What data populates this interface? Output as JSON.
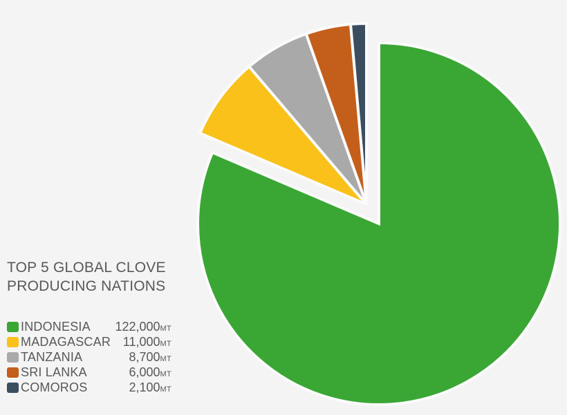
{
  "background_color": "#f4f4f4",
  "separator_color": "#fbfbfb",
  "text_color": "#58585a",
  "title": {
    "line1": "TOP 5 GLOBAL CLOVE",
    "line2": "PRODUCING NATIONS"
  },
  "chart_data": {
    "type": "pie",
    "title": "TOP 5 GLOBAL CLOVE PRODUCING NATIONS",
    "unit": "MT",
    "direction": "clockwise",
    "start_angle_deg": 0,
    "legend_position": "bottom-left",
    "total": 149800,
    "series": [
      {
        "name": "INDONESIA",
        "value": 122000,
        "display_value": "122,000",
        "color": "#3aa735",
        "exploded": false
      },
      {
        "name": "MADAGASCAR",
        "value": 11000,
        "display_value": "11,000",
        "color": "#f9c11a",
        "exploded": true
      },
      {
        "name": "TANZANIA",
        "value": 8700,
        "display_value": "8,700",
        "color": "#a9a9a9",
        "exploded": true
      },
      {
        "name": "SRI LANKA",
        "value": 6000,
        "display_value": "6,000",
        "color": "#c45f1b",
        "exploded": true
      },
      {
        "name": "COMOROS",
        "value": 2100,
        "display_value": "2,100",
        "color": "#3a4e60",
        "exploded": true
      }
    ]
  }
}
